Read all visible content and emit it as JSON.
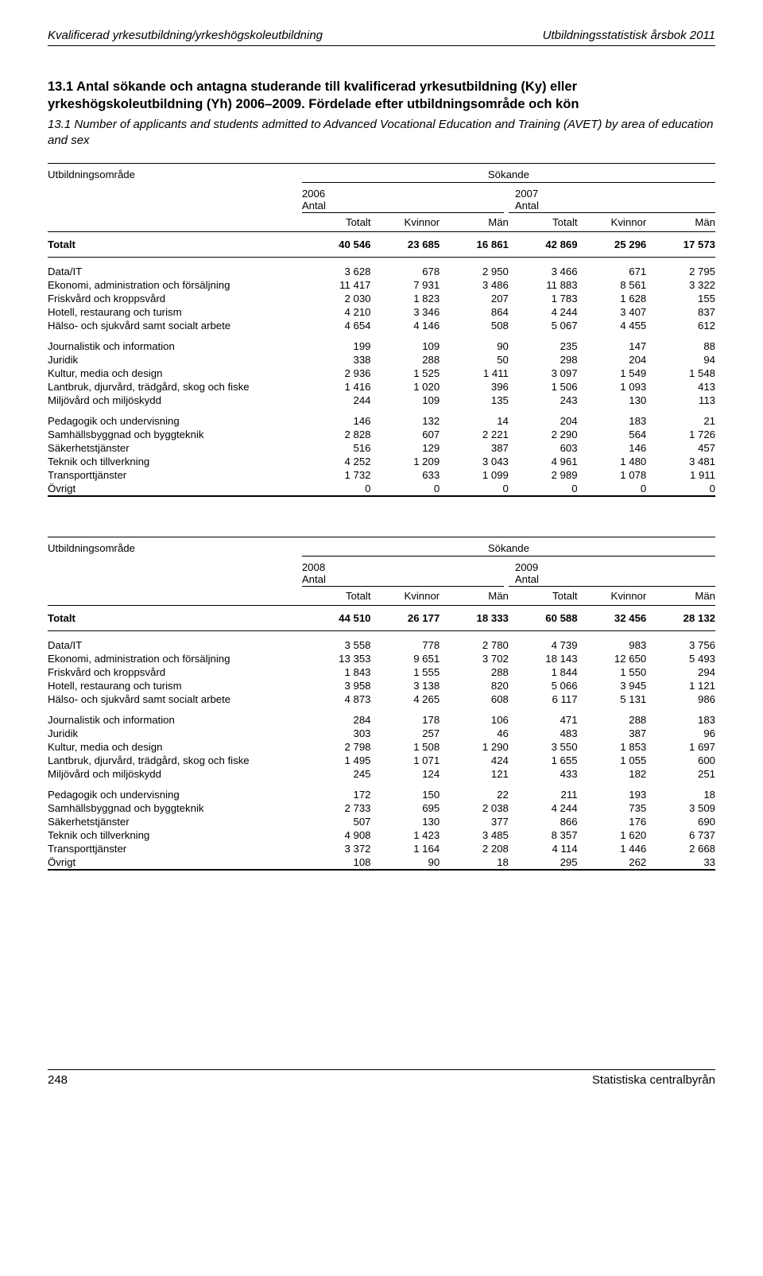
{
  "header": {
    "left": "Kvalificerad yrkesutbildning/yrkeshögskoleutbildning",
    "right": "Utbildningsstatistisk årsbok 2011"
  },
  "title": {
    "sv": "13.1 Antal sökande och antagna studerande till kvalificerad yrkesutbildning (Ky) eller yrkeshögskoleutbildning (Yh) 2006–2009. Fördelade efter utbildningsområde och kön",
    "en": "13.1 Number of applicants and students admitted to Advanced Vocational Education and Training (AVET) by area of education and sex"
  },
  "table_top": {
    "row_label_header": "Utbildningsområde",
    "super_header": "Sökande",
    "left_year": "2006",
    "right_year": "2007",
    "unit": "Antal",
    "cols": [
      "Totalt",
      "Kvinnor",
      "Män",
      "Totalt",
      "Kvinnor",
      "Män"
    ],
    "total_row": {
      "label": "Totalt",
      "vals": [
        "40 546",
        "23 685",
        "16 861",
        "42 869",
        "25 296",
        "17 573"
      ]
    },
    "groups": [
      [
        {
          "label": "Data/IT",
          "vals": [
            "3 628",
            "678",
            "2 950",
            "3 466",
            "671",
            "2 795"
          ]
        },
        {
          "label": "Ekonomi, administration och försäljning",
          "vals": [
            "11 417",
            "7 931",
            "3 486",
            "11 883",
            "8 561",
            "3 322"
          ]
        },
        {
          "label": "Friskvård och kroppsvård",
          "vals": [
            "2 030",
            "1 823",
            "207",
            "1 783",
            "1 628",
            "155"
          ]
        },
        {
          "label": "Hotell, restaurang och turism",
          "vals": [
            "4 210",
            "3 346",
            "864",
            "4 244",
            "3 407",
            "837"
          ]
        },
        {
          "label": "Hälso- och sjukvård samt socialt arbete",
          "vals": [
            "4 654",
            "4 146",
            "508",
            "5 067",
            "4 455",
            "612"
          ]
        }
      ],
      [
        {
          "label": "Journalistik och information",
          "vals": [
            "199",
            "109",
            "90",
            "235",
            "147",
            "88"
          ]
        },
        {
          "label": "Juridik",
          "vals": [
            "338",
            "288",
            "50",
            "298",
            "204",
            "94"
          ]
        },
        {
          "label": "Kultur, media och design",
          "vals": [
            "2 936",
            "1 525",
            "1 411",
            "3 097",
            "1 549",
            "1 548"
          ]
        },
        {
          "label": "Lantbruk, djurvård, trädgård, skog och fiske",
          "vals": [
            "1 416",
            "1 020",
            "396",
            "1 506",
            "1 093",
            "413"
          ]
        },
        {
          "label": "Miljövård och miljöskydd",
          "vals": [
            "244",
            "109",
            "135",
            "243",
            "130",
            "113"
          ]
        }
      ],
      [
        {
          "label": "Pedagogik och undervisning",
          "vals": [
            "146",
            "132",
            "14",
            "204",
            "183",
            "21"
          ]
        },
        {
          "label": "Samhällsbyggnad och byggteknik",
          "vals": [
            "2 828",
            "607",
            "2 221",
            "2 290",
            "564",
            "1 726"
          ]
        },
        {
          "label": "Säkerhetstjänster",
          "vals": [
            "516",
            "129",
            "387",
            "603",
            "146",
            "457"
          ]
        },
        {
          "label": "Teknik och tillverkning",
          "vals": [
            "4 252",
            "1 209",
            "3 043",
            "4 961",
            "1 480",
            "3 481"
          ]
        },
        {
          "label": "Transporttjänster",
          "vals": [
            "1 732",
            "633",
            "1 099",
            "2 989",
            "1 078",
            "1 911"
          ]
        },
        {
          "label": "Övrigt",
          "vals": [
            "0",
            "0",
            "0",
            "0",
            "0",
            "0"
          ]
        }
      ]
    ]
  },
  "table_bottom": {
    "row_label_header": "Utbildningsområde",
    "super_header": "Sökande",
    "left_year": "2008",
    "right_year": "2009",
    "unit": "Antal",
    "cols": [
      "Totalt",
      "Kvinnor",
      "Män",
      "Totalt",
      "Kvinnor",
      "Män"
    ],
    "total_row": {
      "label": "Totalt",
      "vals": [
        "44 510",
        "26 177",
        "18 333",
        "60 588",
        "32 456",
        "28 132"
      ]
    },
    "groups": [
      [
        {
          "label": "Data/IT",
          "vals": [
            "3 558",
            "778",
            "2 780",
            "4 739",
            "983",
            "3 756"
          ]
        },
        {
          "label": "Ekonomi, administration och försäljning",
          "vals": [
            "13 353",
            "9 651",
            "3 702",
            "18 143",
            "12 650",
            "5 493"
          ]
        },
        {
          "label": "Friskvård och kroppsvård",
          "vals": [
            "1 843",
            "1 555",
            "288",
            "1 844",
            "1 550",
            "294"
          ]
        },
        {
          "label": "Hotell, restaurang och turism",
          "vals": [
            "3 958",
            "3 138",
            "820",
            "5 066",
            "3 945",
            "1 121"
          ]
        },
        {
          "label": "Hälso- och sjukvård samt socialt arbete",
          "vals": [
            "4 873",
            "4 265",
            "608",
            "6 117",
            "5 131",
            "986"
          ]
        }
      ],
      [
        {
          "label": "Journalistik och information",
          "vals": [
            "284",
            "178",
            "106",
            "471",
            "288",
            "183"
          ]
        },
        {
          "label": "Juridik",
          "vals": [
            "303",
            "257",
            "46",
            "483",
            "387",
            "96"
          ]
        },
        {
          "label": "Kultur, media och design",
          "vals": [
            "2 798",
            "1 508",
            "1 290",
            "3 550",
            "1 853",
            "1 697"
          ]
        },
        {
          "label": "Lantbruk, djurvård, trädgård, skog och fiske",
          "vals": [
            "1 495",
            "1 071",
            "424",
            "1 655",
            "1 055",
            "600"
          ]
        },
        {
          "label": "Miljövård och miljöskydd",
          "vals": [
            "245",
            "124",
            "121",
            "433",
            "182",
            "251"
          ]
        }
      ],
      [
        {
          "label": "Pedagogik och undervisning",
          "vals": [
            "172",
            "150",
            "22",
            "211",
            "193",
            "18"
          ]
        },
        {
          "label": "Samhällsbyggnad och byggteknik",
          "vals": [
            "2 733",
            "695",
            "2 038",
            "4 244",
            "735",
            "3 509"
          ]
        },
        {
          "label": "Säkerhetstjänster",
          "vals": [
            "507",
            "130",
            "377",
            "866",
            "176",
            "690"
          ]
        },
        {
          "label": "Teknik och tillverkning",
          "vals": [
            "4 908",
            "1 423",
            "3 485",
            "8 357",
            "1 620",
            "6 737"
          ]
        },
        {
          "label": "Transporttjänster",
          "vals": [
            "3 372",
            "1 164",
            "2 208",
            "4 114",
            "1 446",
            "2 668"
          ]
        },
        {
          "label": "Övrigt",
          "vals": [
            "108",
            "90",
            "18",
            "295",
            "262",
            "33"
          ]
        }
      ]
    ]
  },
  "footer": {
    "page": "248",
    "publisher": "Statistiska centralbyrån"
  }
}
